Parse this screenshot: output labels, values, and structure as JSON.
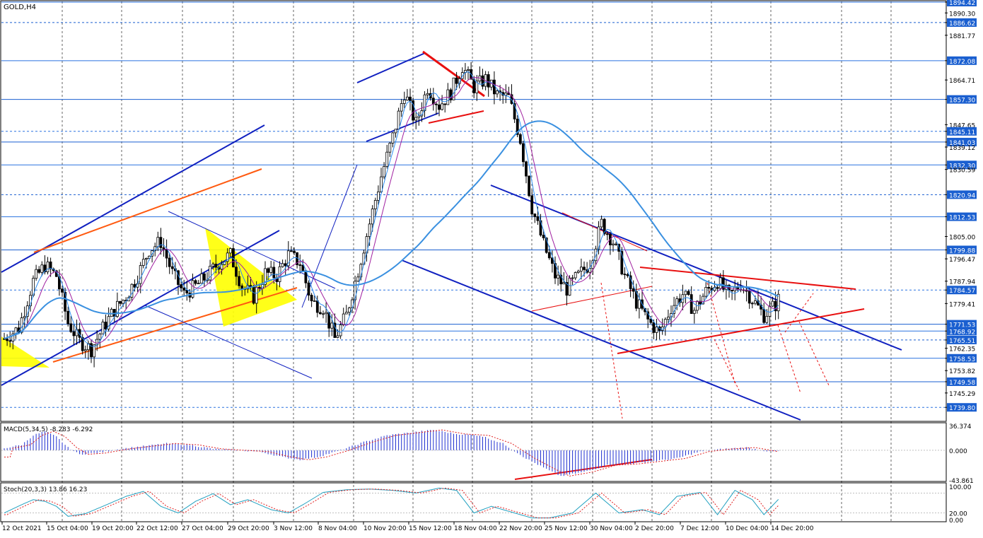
{
  "chart_data": [
    {
      "type": "candlestick",
      "title": "GOLD,H4",
      "symbol": "GOLD",
      "timeframe": "H4",
      "ylim": [
        1735.0,
        1894.42
      ],
      "grid": true,
      "price_levels": [
        "1894.42",
        "1890.30",
        "1886.62",
        "1881.77",
        "1872.08",
        "1864.71",
        "1857.30",
        "1847.65",
        "1845.11",
        "1841.03",
        "1839.12",
        "1832.30",
        "1830.59",
        "1820.94",
        "1812.53",
        "1805.00",
        "1799.88",
        "1796.47",
        "1787.94",
        "1784.57",
        "1779.41",
        "1771.53",
        "1768.92",
        "1765.51",
        "1762.35",
        "1758.53",
        "1753.82",
        "1749.58",
        "1745.29",
        "1739.80"
      ],
      "y_ticks": [
        1890.3,
        1881.77,
        1864.71,
        1847.65,
        1839.12,
        1830.59,
        1805.0,
        1796.47,
        1787.94,
        1779.41,
        1762.35,
        1753.82,
        1745.29
      ],
      "horizontal_levels": [
        1894.42,
        1886.62,
        1872.08,
        1857.3,
        1845.11,
        1841.03,
        1832.3,
        1820.94,
        1812.53,
        1799.88,
        1784.57,
        1771.53,
        1768.92,
        1765.51,
        1758.53,
        1749.58,
        1739.8
      ],
      "x_ticks": [
        "12 Oct 2021",
        "15 Oct 04:00",
        "19 Oct 20:00",
        "22 Oct 12:00",
        "27 Oct 04:00",
        "29 Oct 20:00",
        "3 Nov 12:00",
        "8 Nov 04:00",
        "10 Nov 20:00",
        "15 Nov 12:00",
        "18 Nov 04:00",
        "22 Nov 20:00",
        "25 Nov 12:00",
        "30 Nov 04:00",
        "2 Dec 20:00",
        "7 Dec 12:00",
        "10 Dec 04:00",
        "14 Dec 20:00"
      ],
      "close_path": [
        [
          0,
          1766
        ],
        [
          5,
          1770
        ],
        [
          10,
          1788
        ],
        [
          14,
          1794
        ],
        [
          18,
          1790
        ],
        [
          22,
          1772
        ],
        [
          26,
          1765
        ],
        [
          30,
          1762
        ],
        [
          34,
          1770
        ],
        [
          38,
          1777
        ],
        [
          42,
          1782
        ],
        [
          46,
          1790
        ],
        [
          50,
          1800
        ],
        [
          54,
          1803
        ],
        [
          58,
          1791
        ],
        [
          62,
          1783
        ],
        [
          66,
          1786
        ],
        [
          70,
          1790
        ],
        [
          74,
          1795
        ],
        [
          78,
          1798
        ],
        [
          82,
          1786
        ],
        [
          86,
          1782
        ],
        [
          90,
          1791
        ],
        [
          94,
          1790
        ],
        [
          98,
          1798
        ],
        [
          102,
          1795
        ],
        [
          106,
          1780
        ],
        [
          110,
          1778
        ],
        [
          114,
          1766
        ],
        [
          118,
          1775
        ],
        [
          122,
          1792
        ],
        [
          126,
          1810
        ],
        [
          130,
          1828
        ],
        [
          134,
          1843
        ],
        [
          138,
          1860
        ],
        [
          142,
          1848
        ],
        [
          146,
          1862
        ],
        [
          150,
          1855
        ],
        [
          154,
          1860
        ],
        [
          158,
          1870
        ],
        [
          162,
          1862
        ],
        [
          166,
          1865
        ],
        [
          170,
          1859
        ],
        [
          174,
          1858
        ],
        [
          178,
          1842
        ],
        [
          182,
          1816
        ],
        [
          186,
          1802
        ],
        [
          190,
          1790
        ],
        [
          194,
          1785
        ],
        [
          198,
          1790
        ],
        [
          202,
          1795
        ],
        [
          206,
          1810
        ],
        [
          210,
          1803
        ],
        [
          214,
          1790
        ],
        [
          218,
          1780
        ],
        [
          222,
          1773
        ],
        [
          226,
          1768
        ],
        [
          230,
          1778
        ],
        [
          234,
          1783
        ],
        [
          238,
          1777
        ],
        [
          242,
          1784
        ],
        [
          246,
          1788
        ],
        [
          250,
          1782
        ],
        [
          254,
          1787
        ],
        [
          258,
          1781
        ],
        [
          262,
          1775
        ],
        [
          266,
          1779
        ],
        [
          270,
          1787
        ],
        [
          274,
          1787
        ],
        [
          278,
          1783
        ],
        [
          282,
          1770
        ],
        [
          284,
          1768
        ]
      ]
    },
    {
      "type": "macd",
      "label": "MACD(5,34,5) -8.283 -6.292",
      "ylim": [
        -43.861,
        36.374
      ],
      "y_ticks": [
        "36.374",
        "0.000",
        "-43.861"
      ],
      "hist_path": [
        [
          0,
          3
        ],
        [
          6,
          8
        ],
        [
          10,
          22
        ],
        [
          14,
          28
        ],
        [
          18,
          20
        ],
        [
          22,
          4
        ],
        [
          26,
          -6
        ],
        [
          32,
          -4
        ],
        [
          40,
          2
        ],
        [
          48,
          6
        ],
        [
          56,
          10
        ],
        [
          64,
          8
        ],
        [
          72,
          2
        ],
        [
          80,
          0
        ],
        [
          88,
          -2
        ],
        [
          96,
          -10
        ],
        [
          102,
          -14
        ],
        [
          108,
          -10
        ],
        [
          116,
          0
        ],
        [
          124,
          12
        ],
        [
          132,
          22
        ],
        [
          140,
          26
        ],
        [
          148,
          30
        ],
        [
          156,
          24
        ],
        [
          164,
          22
        ],
        [
          172,
          10
        ],
        [
          180,
          -12
        ],
        [
          188,
          -30
        ],
        [
          192,
          -38
        ],
        [
          200,
          -32
        ],
        [
          208,
          -22
        ],
        [
          216,
          -20
        ],
        [
          224,
          -16
        ],
        [
          232,
          -12
        ],
        [
          240,
          -2
        ],
        [
          248,
          2
        ],
        [
          256,
          4
        ],
        [
          264,
          -2
        ],
        [
          272,
          0
        ],
        [
          278,
          2
        ],
        [
          284,
          -10
        ]
      ]
    },
    {
      "type": "stochastic",
      "label": "Stoch(20,3,3) 13.86 16.23",
      "ylim": [
        0,
        100
      ],
      "y_ticks": [
        "100.00",
        "20.00",
        "0.00"
      ],
      "k_path": [
        [
          0,
          20
        ],
        [
          6,
          45
        ],
        [
          10,
          60
        ],
        [
          14,
          55
        ],
        [
          18,
          40
        ],
        [
          22,
          10
        ],
        [
          28,
          18
        ],
        [
          34,
          40
        ],
        [
          42,
          70
        ],
        [
          48,
          85
        ],
        [
          54,
          40
        ],
        [
          60,
          20
        ],
        [
          66,
          55
        ],
        [
          72,
          78
        ],
        [
          78,
          45
        ],
        [
          84,
          60
        ],
        [
          92,
          30
        ],
        [
          98,
          20
        ],
        [
          104,
          50
        ],
        [
          110,
          82
        ],
        [
          118,
          90
        ],
        [
          126,
          92
        ],
        [
          134,
          88
        ],
        [
          142,
          80
        ],
        [
          150,
          95
        ],
        [
          156,
          88
        ],
        [
          162,
          20
        ],
        [
          168,
          40
        ],
        [
          176,
          20
        ],
        [
          182,
          5
        ],
        [
          188,
          5
        ],
        [
          196,
          20
        ],
        [
          204,
          80
        ],
        [
          212,
          20
        ],
        [
          220,
          30
        ],
        [
          226,
          15
        ],
        [
          232,
          70
        ],
        [
          240,
          82
        ],
        [
          246,
          15
        ],
        [
          252,
          88
        ],
        [
          258,
          60
        ],
        [
          262,
          15
        ],
        [
          268,
          70
        ],
        [
          276,
          80
        ],
        [
          284,
          15
        ]
      ]
    }
  ]
}
